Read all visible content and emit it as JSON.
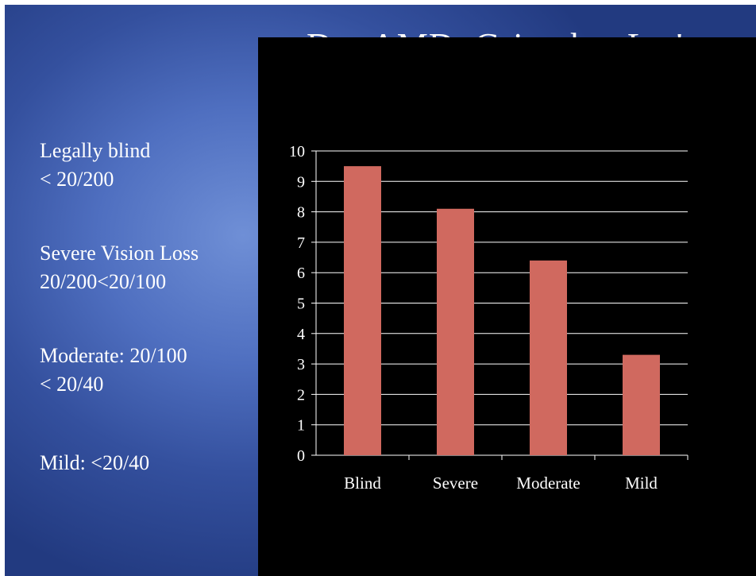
{
  "slide": {
    "title": "Dry AMD: Grim, but Let's",
    "bullets": [
      {
        "text": "Legally blind\n< 20/200"
      },
      {
        "text": "Severe Vision  Loss\n20/200<20/100"
      },
      {
        "text": "Moderate: 20/100\n< 20/40"
      },
      {
        "text": "Mild:  <20/40"
      }
    ]
  },
  "colors": {
    "bar": "#d0695f",
    "panel": "#000000",
    "grid": "#ffffff"
  },
  "chart_data": {
    "type": "bar",
    "categories": [
      "Blind",
      "Severe",
      "Moderate",
      "Mild"
    ],
    "values": [
      9.5,
      8.1,
      6.4,
      3.3
    ],
    "ylim": [
      0,
      10
    ],
    "yticks": [
      "0",
      "1",
      "2",
      "3",
      "4",
      "5",
      "6",
      "7",
      "8",
      "9",
      "10"
    ],
    "grid": true,
    "legend": "none"
  }
}
